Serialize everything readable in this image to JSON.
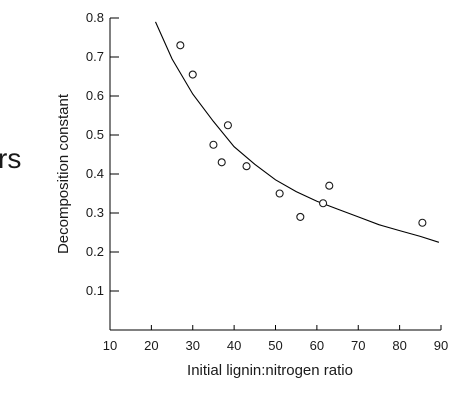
{
  "side_fragment": "rs",
  "chart_data": {
    "type": "scatter",
    "title": "",
    "xlabel": "Initial lignin:nitrogen ratio",
    "ylabel": "Decomposition constant",
    "xlim": [
      10,
      90
    ],
    "ylim": [
      0,
      0.8
    ],
    "x_ticks": [
      "10",
      "20",
      "30",
      "40",
      "50",
      "60",
      "70",
      "80",
      "90"
    ],
    "y_ticks": [
      "0.1",
      "0.2",
      "0.3",
      "0.4",
      "0.5",
      "0.6",
      "0.7",
      "0.8"
    ],
    "grid": false,
    "points": [
      {
        "x": 27,
        "y": 0.73
      },
      {
        "x": 30,
        "y": 0.655
      },
      {
        "x": 35,
        "y": 0.475
      },
      {
        "x": 37,
        "y": 0.43
      },
      {
        "x": 38.5,
        "y": 0.525
      },
      {
        "x": 43,
        "y": 0.42
      },
      {
        "x": 51,
        "y": 0.35
      },
      {
        "x": 56,
        "y": 0.29
      },
      {
        "x": 61.5,
        "y": 0.325
      },
      {
        "x": 63,
        "y": 0.37
      },
      {
        "x": 85.5,
        "y": 0.275
      }
    ],
    "fit_curve": [
      {
        "x": 21,
        "y": 0.79
      },
      {
        "x": 25,
        "y": 0.695
      },
      {
        "x": 30,
        "y": 0.605
      },
      {
        "x": 35,
        "y": 0.535
      },
      {
        "x": 40,
        "y": 0.47
      },
      {
        "x": 45,
        "y": 0.425
      },
      {
        "x": 50,
        "y": 0.385
      },
      {
        "x": 55,
        "y": 0.355
      },
      {
        "x": 60,
        "y": 0.33
      },
      {
        "x": 65,
        "y": 0.31
      },
      {
        "x": 70,
        "y": 0.29
      },
      {
        "x": 75,
        "y": 0.27
      },
      {
        "x": 80,
        "y": 0.255
      },
      {
        "x": 85,
        "y": 0.24
      },
      {
        "x": 89.5,
        "y": 0.225
      }
    ],
    "colors": {
      "axis": "#000000",
      "marker_stroke": "#1a1a1a",
      "marker_fill": "#ffffff",
      "curve": "#000000"
    }
  }
}
